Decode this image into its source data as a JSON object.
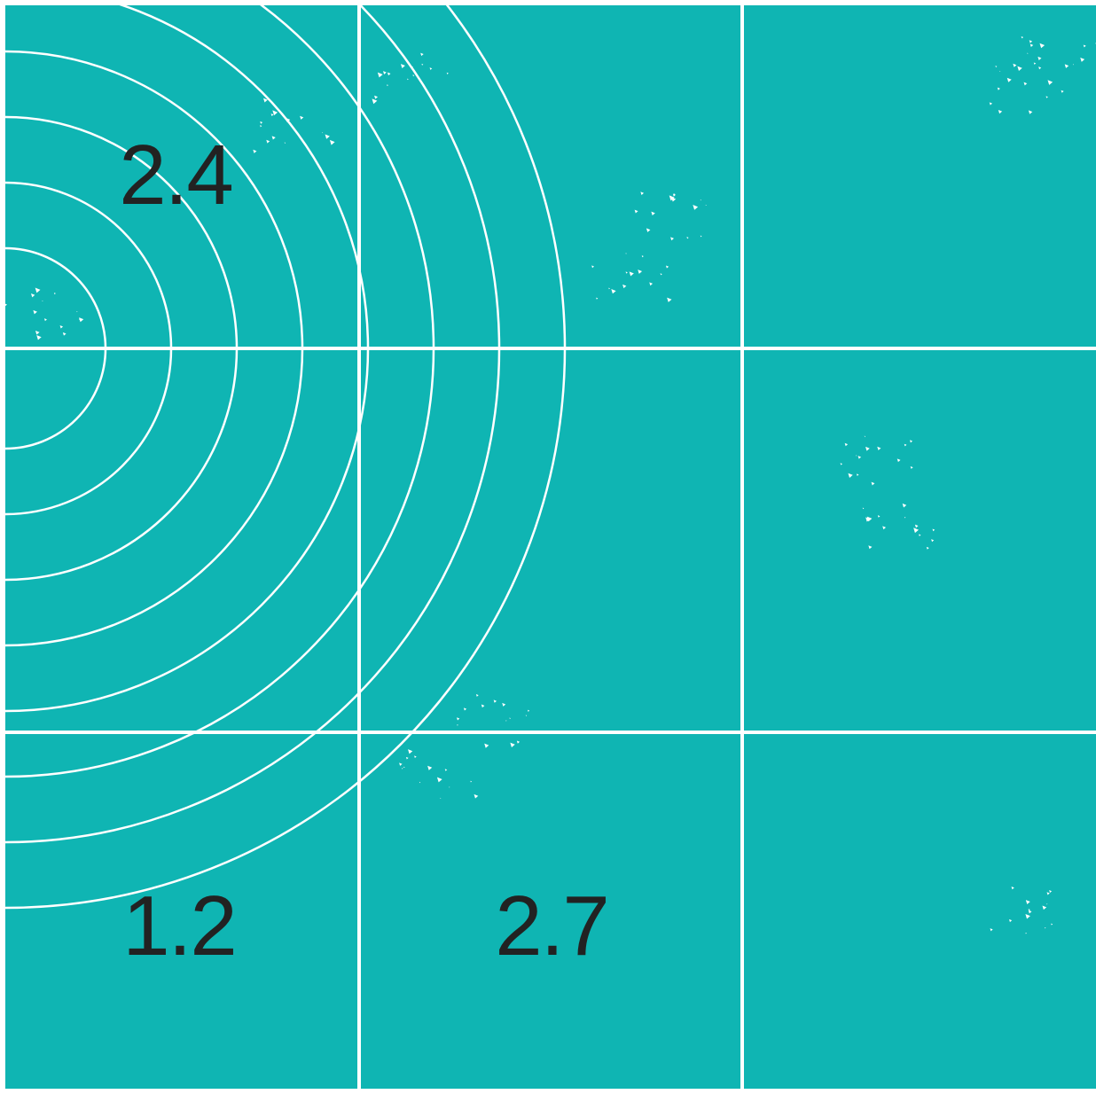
{
  "colors": {
    "background": "#0fb5b3",
    "lines": "#ffffff",
    "label_text": "#222222"
  },
  "grid": {
    "rows": 3,
    "columns": 3
  },
  "rings": {
    "count": 8
  },
  "cells": {
    "top_left": {
      "label": "2.4"
    },
    "bottom_left": {
      "label": "1.2"
    },
    "bottom_middle": {
      "label": "2.7"
    }
  }
}
